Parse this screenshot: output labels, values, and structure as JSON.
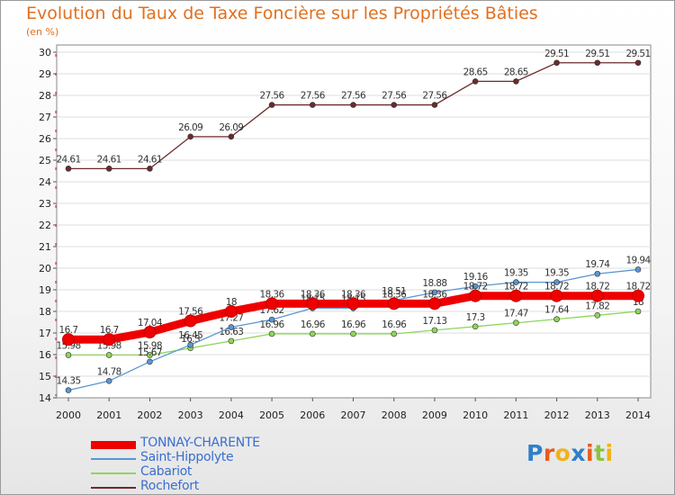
{
  "chart_data": {
    "type": "line",
    "title": "Evolution du Taux de Taxe Foncière sur les Propriétés Bâties",
    "ylabel": "(en %)",
    "xlabel": "",
    "categories": [
      "2000",
      "2001",
      "2002",
      "2003",
      "2004",
      "2005",
      "2006",
      "2007",
      "2008",
      "2009",
      "2010",
      "2011",
      "2012",
      "2013",
      "2014"
    ],
    "ylim": [
      14,
      30
    ],
    "yticks": [
      "14",
      "15",
      "16",
      "17",
      "18",
      "19",
      "20",
      "21",
      "22",
      "23",
      "24",
      "25",
      "26",
      "27",
      "28",
      "29",
      "30"
    ],
    "series": [
      {
        "name": "Rochefort",
        "color": "#6b2b2b",
        "values": [
          24.61,
          24.61,
          24.61,
          26.09,
          26.09,
          27.56,
          27.56,
          27.56,
          27.56,
          27.56,
          28.65,
          28.65,
          29.51,
          29.51,
          29.51
        ],
        "labels": [
          "24.61",
          "24.61",
          "24.61",
          "26.09",
          "26.09",
          "27.56",
          "27.56",
          "27.56",
          "27.56",
          "27.56",
          "28.65",
          "28.65",
          "29.51",
          "29.51",
          "29.51"
        ]
      },
      {
        "name": "Cabariot",
        "color": "#8ed65a",
        "values": [
          15.98,
          15.98,
          15.98,
          16.3,
          16.63,
          16.96,
          16.96,
          16.96,
          16.96,
          17.13,
          17.3,
          17.47,
          17.64,
          17.82,
          18
        ],
        "labels": [
          "15.98",
          "15.98",
          "15.98",
          "16.3",
          "16.63",
          "16.96",
          "16.96",
          "16.96",
          "16.96",
          "17.13",
          "17.3",
          "17.47",
          "17.64",
          "17.82",
          "18"
        ]
      },
      {
        "name": "Saint-Hippolyte",
        "color": "#5a96d2",
        "values": [
          14.35,
          14.78,
          15.67,
          16.45,
          17.27,
          17.62,
          18.15,
          18.15,
          18.51,
          18.88,
          19.16,
          19.35,
          19.35,
          19.74,
          19.94
        ],
        "labels": [
          "14.35",
          "14.78",
          "15.67",
          "16.45",
          "17.27",
          "17.62",
          "18.15",
          "18.15",
          "18.51",
          "18.88",
          "19.16",
          "19.35",
          "19.35",
          "19.74",
          "19.94"
        ]
      },
      {
        "name": "TONNAY-CHARENTE",
        "color": "#ee0000",
        "values": [
          16.7,
          16.7,
          17.04,
          17.56,
          18,
          18.36,
          18.36,
          18.36,
          18.36,
          18.36,
          18.72,
          18.72,
          18.72,
          18.72,
          18.72
        ],
        "labels": [
          "16.7",
          "16.7",
          "17.04",
          "17.56",
          "18",
          "18.36",
          "18.36",
          "18.36",
          "18.36",
          "18.36",
          "18.72",
          "18.72",
          "18.72",
          "18.72",
          "18.72"
        ]
      }
    ],
    "legend_position": "bottom-left"
  },
  "legend": [
    {
      "label": "TONNAY-CHARENTE",
      "color": "#ee0000",
      "weight": "thick"
    },
    {
      "label": "Saint-Hippolyte",
      "color": "#5a96d2",
      "weight": "thin"
    },
    {
      "label": "Cabariot",
      "color": "#8ed65a",
      "weight": "thin"
    },
    {
      "label": "Rochefort",
      "color": "#6b2b2b",
      "weight": "thin"
    }
  ],
  "logo": {
    "letters": [
      "P",
      "r",
      "o",
      "x",
      "i",
      "t",
      "i"
    ],
    "colors": [
      "#2f7fc8",
      "#e85c1c",
      "#f2b21a",
      "#2f7fc8",
      "#e85c1c",
      "#8bc43f",
      "#f2b21a"
    ]
  }
}
